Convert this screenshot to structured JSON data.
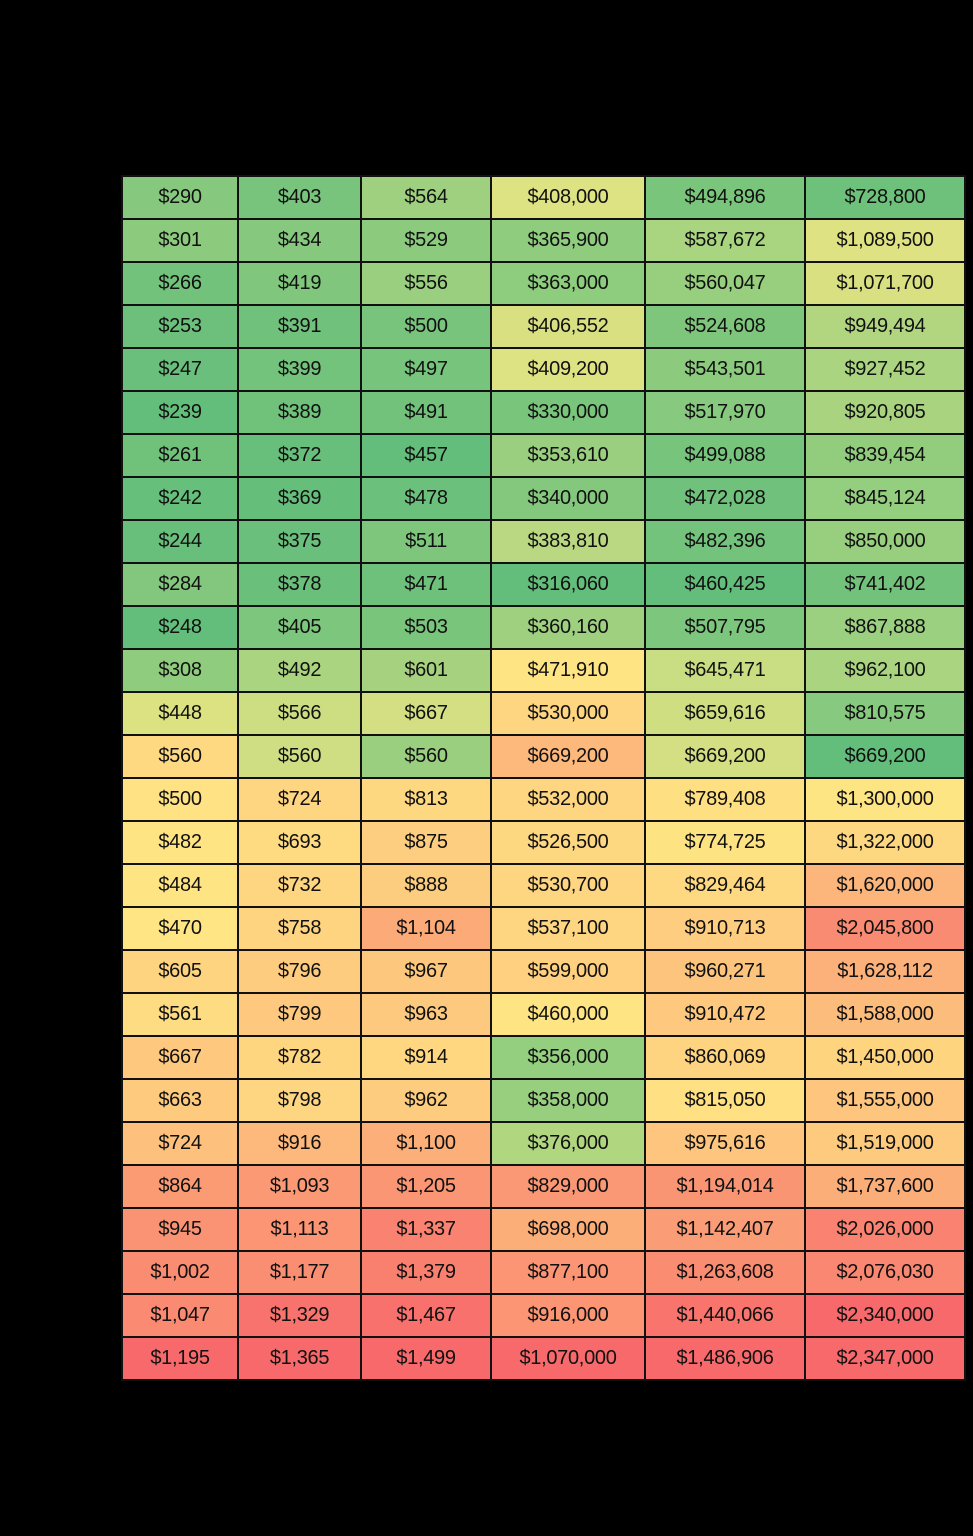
{
  "chart_data": {
    "type": "heatmap",
    "title": "",
    "color_scale": {
      "low": "#63be7b",
      "mid": "#ffe484",
      "high": "#f8696b"
    },
    "columns": 6,
    "rows": [
      [
        "$290",
        "$403",
        "$564",
        "$408,000",
        "$494,896",
        "$728,800"
      ],
      [
        "$301",
        "$434",
        "$529",
        "$365,900",
        "$587,672",
        "$1,089,500"
      ],
      [
        "$266",
        "$419",
        "$556",
        "$363,000",
        "$560,047",
        "$1,071,700"
      ],
      [
        "$253",
        "$391",
        "$500",
        "$406,552",
        "$524,608",
        "$949,494"
      ],
      [
        "$247",
        "$399",
        "$497",
        "$409,200",
        "$543,501",
        "$927,452"
      ],
      [
        "$239",
        "$389",
        "$491",
        "$330,000",
        "$517,970",
        "$920,805"
      ],
      [
        "$261",
        "$372",
        "$457",
        "$353,610",
        "$499,088",
        "$839,454"
      ],
      [
        "$242",
        "$369",
        "$478",
        "$340,000",
        "$472,028",
        "$845,124"
      ],
      [
        "$244",
        "$375",
        "$511",
        "$383,810",
        "$482,396",
        "$850,000"
      ],
      [
        "$284",
        "$378",
        "$471",
        "$316,060",
        "$460,425",
        "$741,402"
      ],
      [
        "$248",
        "$405",
        "$503",
        "$360,160",
        "$507,795",
        "$867,888"
      ],
      [
        "$308",
        "$492",
        "$601",
        "$471,910",
        "$645,471",
        "$962,100"
      ],
      [
        "$448",
        "$566",
        "$667",
        "$530,000",
        "$659,616",
        "$810,575"
      ],
      [
        "$560",
        "$560",
        "$560",
        "$669,200",
        "$669,200",
        "$669,200"
      ],
      [
        "$500",
        "$724",
        "$813",
        "$532,000",
        "$789,408",
        "$1,300,000"
      ],
      [
        "$482",
        "$693",
        "$875",
        "$526,500",
        "$774,725",
        "$1,322,000"
      ],
      [
        "$484",
        "$732",
        "$888",
        "$530,700",
        "$829,464",
        "$1,620,000"
      ],
      [
        "$470",
        "$758",
        "$1,104",
        "$537,100",
        "$910,713",
        "$2,045,800"
      ],
      [
        "$605",
        "$796",
        "$967",
        "$599,000",
        "$960,271",
        "$1,628,112"
      ],
      [
        "$561",
        "$799",
        "$963",
        "$460,000",
        "$910,472",
        "$1,588,000"
      ],
      [
        "$667",
        "$782",
        "$914",
        "$356,000",
        "$860,069",
        "$1,450,000"
      ],
      [
        "$663",
        "$798",
        "$962",
        "$358,000",
        "$815,050",
        "$1,555,000"
      ],
      [
        "$724",
        "$916",
        "$1,100",
        "$376,000",
        "$975,616",
        "$1,519,000"
      ],
      [
        "$864",
        "$1,093",
        "$1,205",
        "$829,000",
        "$1,194,014",
        "$1,737,600"
      ],
      [
        "$945",
        "$1,113",
        "$1,337",
        "$698,000",
        "$1,142,407",
        "$2,026,000"
      ],
      [
        "$1,002",
        "$1,177",
        "$1,379",
        "$877,100",
        "$1,263,608",
        "$2,076,030"
      ],
      [
        "$1,047",
        "$1,329",
        "$1,467",
        "$916,000",
        "$1,440,066",
        "$2,340,000"
      ],
      [
        "$1,195",
        "$1,365",
        "$1,499",
        "$1,070,000",
        "$1,486,906",
        "$2,347,000"
      ]
    ],
    "colors": [
      [
        "#86c97e",
        "#79c47c",
        "#9ed07f",
        "#dde283",
        "#7ac57c",
        "#6dc17b"
      ],
      [
        "#8ccb7e",
        "#86c97e",
        "#8ccb7e",
        "#8fcc7e",
        "#a9d480",
        "#dfe283"
      ],
      [
        "#72c27b",
        "#80c77d",
        "#9acf7f",
        "#8ecc7e",
        "#98cf7f",
        "#d8e082"
      ],
      [
        "#6cc07b",
        "#6fc17b",
        "#79c47c",
        "#d9e082",
        "#7fc67d",
        "#b2d680"
      ],
      [
        "#69bf7b",
        "#74c37c",
        "#77c47c",
        "#dde283",
        "#8ccb7e",
        "#aad480"
      ],
      [
        "#64be7b",
        "#70c27b",
        "#72c27b",
        "#7ac57c",
        "#87c97e",
        "#aad380"
      ],
      [
        "#70c27b",
        "#67bf7b",
        "#63be7b",
        "#99cf7f",
        "#77c47c",
        "#92cd7e"
      ],
      [
        "#66bf7b",
        "#65bf7b",
        "#6bc07b",
        "#84c87d",
        "#6fc17b",
        "#94ce7f"
      ],
      [
        "#67bf7b",
        "#69bf7b",
        "#7fc67d",
        "#b9d881",
        "#74c37c",
        "#98cf7f"
      ],
      [
        "#82c77d",
        "#6ac07b",
        "#6ec17b",
        "#63be7b",
        "#63be7b",
        "#73c27c"
      ],
      [
        "#63be7b",
        "#7dc67d",
        "#7ac57c",
        "#9ed07f",
        "#7dc67d",
        "#9ad07f"
      ],
      [
        "#8fcc7e",
        "#abd480",
        "#a6d27f",
        "#ffe484",
        "#c9dd82",
        "#abd480"
      ],
      [
        "#dce182",
        "#cddd82",
        "#d3df82",
        "#fed580",
        "#d0de82",
        "#87c97e"
      ],
      [
        "#fed981",
        "#cfde82",
        "#99cf7f",
        "#fdb87b",
        "#d3df82",
        "#63be7b"
      ],
      [
        "#ffe283",
        "#fed580",
        "#fed880",
        "#fed580",
        "#fee082",
        "#fee583"
      ],
      [
        "#ffe484",
        "#fedb81",
        "#fdce7f",
        "#fed781",
        "#fee383",
        "#fed781"
      ],
      [
        "#ffe484",
        "#fed580",
        "#fdcd7f",
        "#fed580",
        "#fed981",
        "#fcb67b"
      ],
      [
        "#ffe584",
        "#fed480",
        "#fcaa78",
        "#fed580",
        "#fecd7f",
        "#f98b72"
      ],
      [
        "#fed480",
        "#fecc7e",
        "#fdc87e",
        "#fed07f",
        "#fdc47d",
        "#fcb17a"
      ],
      [
        "#fedc82",
        "#fec97e",
        "#fdc97e",
        "#ffe484",
        "#fec87e",
        "#fcbc7c"
      ],
      [
        "#fec97e",
        "#fed680",
        "#fed780",
        "#94ce7f",
        "#fed480",
        "#fed47f"
      ],
      [
        "#feca7e",
        "#fed580",
        "#fdcc7e",
        "#98cf7f",
        "#ffe083",
        "#fdc57d"
      ],
      [
        "#fdc07d",
        "#fdb97c",
        "#fcaf79",
        "#b1d680",
        "#fdc57d",
        "#fdca7e"
      ],
      [
        "#fb9b74",
        "#fb9974",
        "#fb9674",
        "#fa9774",
        "#fa9574",
        "#fcae79"
      ],
      [
        "#fa9374",
        "#fb9574",
        "#f98270",
        "#fcae79",
        "#fa9c75",
        "#f98270"
      ],
      [
        "#fa8c72",
        "#fa8e72",
        "#f97f6f",
        "#fb9574",
        "#fa8c72",
        "#f98771"
      ],
      [
        "#fa8a72",
        "#f8736d",
        "#f8716c",
        "#fb9573",
        "#f8746d",
        "#f8696b"
      ],
      [
        "#f8696b",
        "#f8696b",
        "#f8696b",
        "#f8696b",
        "#f8696b",
        "#f8696b"
      ]
    ]
  }
}
